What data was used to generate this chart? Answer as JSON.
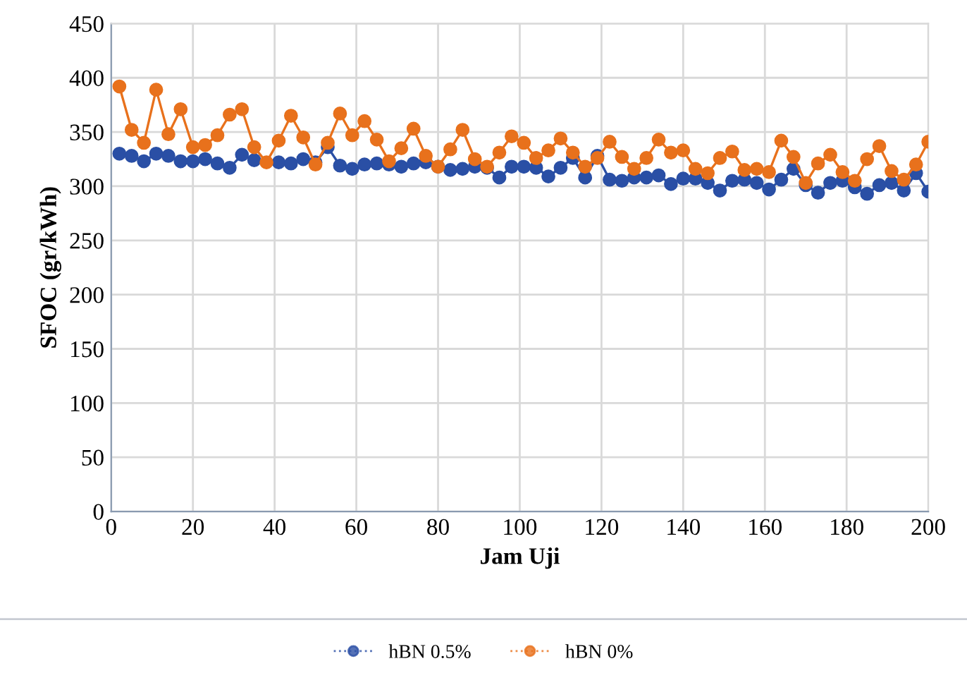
{
  "chart_data": {
    "type": "line",
    "xlabel": "Jam Uji",
    "ylabel": "SFOC (gr/kWh)",
    "x": [
      2,
      5,
      8,
      11,
      14,
      17,
      20,
      23,
      26,
      29,
      32,
      35,
      38,
      41,
      44,
      47,
      50,
      53,
      56,
      59,
      62,
      65,
      68,
      71,
      74,
      77,
      80,
      83,
      86,
      89,
      92,
      95,
      98,
      101,
      104,
      107,
      110,
      113,
      116,
      119,
      122,
      125,
      128,
      131,
      134,
      137,
      140,
      143,
      146,
      149,
      152,
      155,
      158,
      161,
      164,
      167,
      170,
      173,
      176,
      179,
      182,
      185,
      188,
      191,
      194,
      197,
      200
    ],
    "series": [
      {
        "name": "hBN 0.5%",
        "color": "#2a4fa5",
        "values": [
          330,
          328,
          323,
          330,
          328,
          323,
          323,
          325,
          321,
          317,
          329,
          324,
          null,
          322,
          321,
          325,
          322,
          336,
          319,
          316,
          320,
          321,
          320,
          318,
          321,
          322,
          318,
          315,
          316,
          318,
          317,
          308,
          318,
          318,
          317,
          309,
          317,
          326,
          308,
          328,
          306,
          305,
          308,
          308,
          310,
          302,
          307,
          307,
          303,
          296,
          305,
          306,
          303,
          297,
          306,
          316,
          301,
          294,
          303,
          305,
          299,
          293,
          301,
          303,
          296,
          312,
          295
        ]
      },
      {
        "name": "hBN 0%",
        "color": "#e8711c",
        "values": [
          392,
          352,
          340,
          389,
          348,
          371,
          336,
          338,
          347,
          366,
          371,
          336,
          322,
          342,
          365,
          345,
          320,
          340,
          367,
          347,
          360,
          343,
          323,
          335,
          353,
          328,
          318,
          334,
          352,
          325,
          318,
          331,
          346,
          340,
          326,
          333,
          344,
          331,
          318,
          326,
          341,
          327,
          316,
          326,
          343,
          331,
          333,
          316,
          312,
          326,
          332,
          315,
          316,
          313,
          342,
          327,
          303,
          321,
          329,
          313,
          305,
          325,
          337,
          314,
          306,
          320,
          341
        ]
      }
    ],
    "xlim": [
      0,
      200
    ],
    "xticks": [
      0,
      20,
      40,
      60,
      80,
      100,
      120,
      140,
      160,
      180,
      200
    ],
    "ylim": [
      0,
      450
    ],
    "yticks": [
      0,
      50,
      100,
      150,
      200,
      250,
      300,
      350,
      400,
      450
    ],
    "grid": true,
    "legend": "bottom",
    "marker": "circle",
    "line_style": "solid"
  }
}
